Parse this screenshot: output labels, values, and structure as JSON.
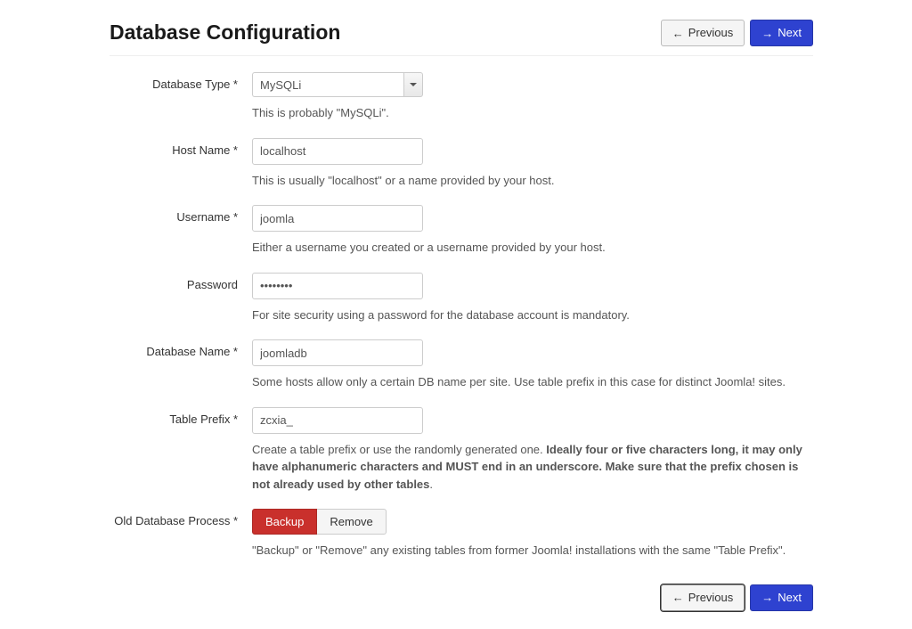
{
  "title": "Database Configuration",
  "nav": {
    "previous": "Previous",
    "next": "Next"
  },
  "colors": {
    "primary": "#2e42d0",
    "danger": "#c9302c",
    "border": "#cccccc",
    "text_muted": "#555555"
  },
  "fields": {
    "db_type": {
      "label": "Database Type *",
      "value": "MySQLi",
      "help": "This is probably \"MySQLi\"."
    },
    "host": {
      "label": "Host Name *",
      "value": "localhost",
      "help": "This is usually \"localhost\" or a name provided by your host."
    },
    "username": {
      "label": "Username *",
      "value": "joomla",
      "help": "Either a username you created or a username provided by your host."
    },
    "password": {
      "label": "Password",
      "value": "••••••••",
      "help": "For site security using a password for the database account is mandatory."
    },
    "db_name": {
      "label": "Database Name *",
      "value": "joomladb",
      "help": "Some hosts allow only a certain DB name per site. Use table prefix in this case for distinct Joomla! sites."
    },
    "prefix": {
      "label": "Table Prefix *",
      "value": "zcxia_",
      "help_lead": "Create a table prefix or use the randomly generated one. ",
      "help_bold": "Ideally four or five characters long, it may only have alphanumeric characters and MUST end in an underscore. Make sure that the prefix chosen is not already used by other tables",
      "help_tail": "."
    },
    "old_db": {
      "label": "Old Database Process *",
      "option_backup": "Backup",
      "option_remove": "Remove",
      "selected": "Backup",
      "help": "\"Backup\" or \"Remove\" any existing tables from former Joomla! installations with the same \"Table Prefix\"."
    }
  }
}
